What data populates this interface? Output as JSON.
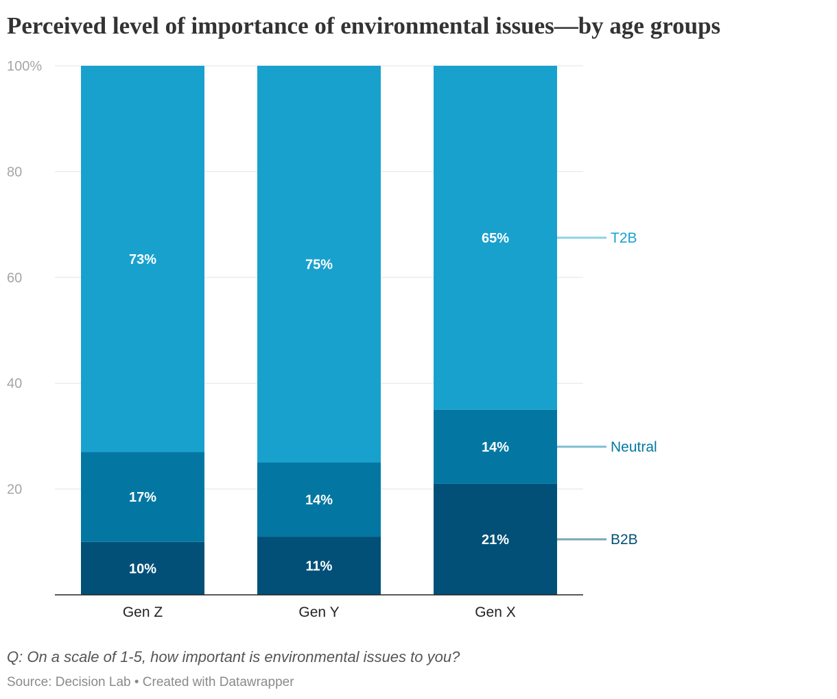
{
  "title": "Perceived level of importance of environmental issues—by age groups",
  "notes": "Q: On a scale of 1-5, how important is environmental issues to you?",
  "source": "Source: Decision Lab • Created with Datawrapper",
  "chart_data": {
    "type": "bar",
    "stacked": true,
    "categories": [
      "Gen Z",
      "Gen Y",
      "Gen X"
    ],
    "series": [
      {
        "name": "B2B",
        "values": [
          10,
          11,
          21
        ],
        "labels": [
          "10%",
          "11%",
          "21%"
        ],
        "color": "#025078",
        "label_color": "#025078",
        "line_color": "#7aa6b7"
      },
      {
        "name": "Neutral",
        "values": [
          17,
          14,
          14
        ],
        "labels": [
          "17%",
          "14%",
          "14%"
        ],
        "color": "#0377a2",
        "label_color": "#0377a2",
        "line_color": "#7cbdd3"
      },
      {
        "name": "T2B",
        "values": [
          73,
          75,
          65
        ],
        "labels": [
          "73%",
          "75%",
          "65%"
        ],
        "color": "#19a1ce",
        "label_color": "#19a1ce",
        "line_color": "#8fd0e4"
      }
    ],
    "yticks": [
      {
        "value": 100,
        "label": "100%"
      },
      {
        "value": 80,
        "label": "80"
      },
      {
        "value": 60,
        "label": "60"
      },
      {
        "value": 40,
        "label": "40"
      },
      {
        "value": 20,
        "label": "20"
      }
    ],
    "ylim": [
      0,
      100
    ],
    "xlabel": "",
    "ylabel": "",
    "grid": true,
    "legend": "direct labels right of last bar"
  }
}
